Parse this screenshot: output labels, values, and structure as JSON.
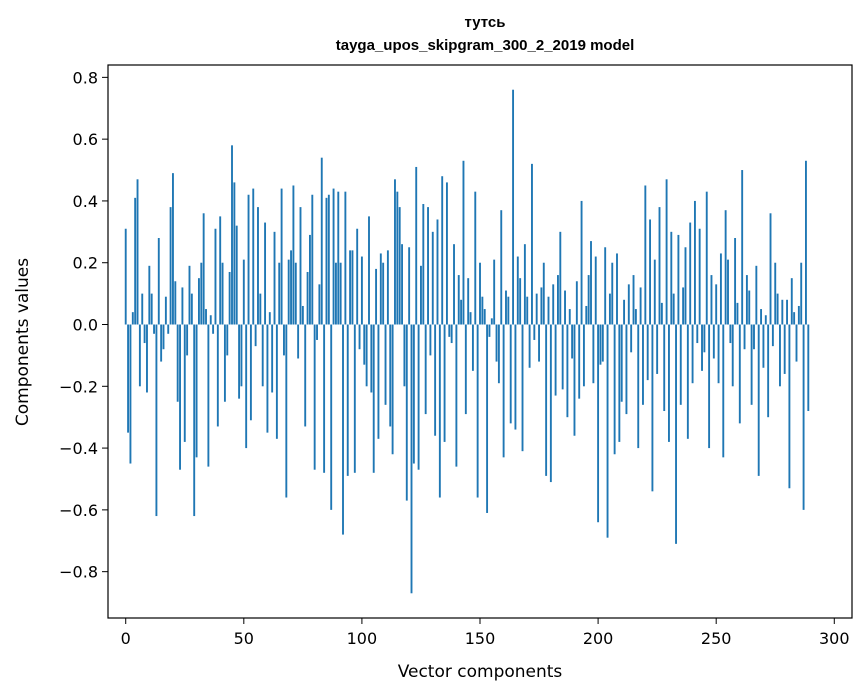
{
  "chart_data": {
    "type": "bar",
    "title_line1": "тутсь",
    "title_line2": "tayga_upos_skipgram_300_2_2019 model",
    "xlabel": "Vector components",
    "ylabel": "Components values",
    "xlim": [
      -7.5,
      307.5
    ],
    "ylim": [
      -0.95,
      0.84
    ],
    "xticks": [
      0,
      50,
      100,
      150,
      200,
      250,
      300
    ],
    "xtick_labels": [
      "0",
      "50",
      "100",
      "150",
      "200",
      "250",
      "300"
    ],
    "yticks": [
      0.8,
      0.6,
      0.4,
      0.2,
      0.0,
      -0.2,
      -0.4,
      -0.6,
      -0.8
    ],
    "ytick_labels": [
      "0.8",
      "0.6",
      "0.4",
      "0.2",
      "0.0",
      "−0.2",
      "−0.4",
      "−0.6",
      "−0.8"
    ],
    "bar_color": "#1f77b4",
    "values": [
      0.31,
      -0.35,
      -0.45,
      0.04,
      0.41,
      0.47,
      -0.2,
      0.1,
      -0.06,
      -0.22,
      0.19,
      0.1,
      -0.03,
      -0.62,
      0.28,
      -0.12,
      -0.08,
      0.09,
      -0.03,
      0.38,
      0.49,
      0.14,
      -0.25,
      -0.47,
      0.12,
      -0.38,
      -0.1,
      0.19,
      0.1,
      -0.62,
      -0.43,
      0.15,
      0.2,
      0.36,
      0.05,
      -0.46,
      0.03,
      -0.03,
      0.31,
      -0.33,
      0.35,
      0.2,
      -0.25,
      -0.1,
      0.17,
      0.58,
      0.46,
      0.32,
      -0.24,
      -0.2,
      0.21,
      -0.4,
      0.42,
      -0.31,
      0.44,
      -0.07,
      0.38,
      0.1,
      -0.2,
      0.33,
      -0.35,
      0.04,
      -0.22,
      0.3,
      -0.37,
      0.2,
      0.44,
      -0.1,
      -0.56,
      0.21,
      0.24,
      0.45,
      0.2,
      -0.11,
      0.38,
      0.06,
      -0.33,
      0.17,
      0.29,
      0.42,
      -0.47,
      -0.05,
      0.13,
      0.54,
      -0.48,
      0.41,
      0.42,
      -0.6,
      0.44,
      0.2,
      0.43,
      0.2,
      -0.68,
      0.43,
      -0.49,
      0.24,
      0.24,
      -0.48,
      0.31,
      -0.08,
      0.22,
      -0.13,
      -0.2,
      0.35,
      -0.22,
      -0.48,
      0.18,
      -0.37,
      0.23,
      0.2,
      -0.26,
      0.24,
      -0.33,
      -0.42,
      0.47,
      0.43,
      0.38,
      0.26,
      -0.2,
      -0.57,
      0.25,
      -0.87,
      -0.45,
      0.51,
      -0.47,
      0.19,
      0.39,
      -0.29,
      0.38,
      -0.1,
      0.3,
      -0.36,
      0.34,
      -0.56,
      0.48,
      -0.38,
      0.46,
      -0.04,
      -0.06,
      0.26,
      -0.46,
      0.16,
      0.08,
      0.53,
      -0.29,
      0.15,
      0.04,
      -0.15,
      0.43,
      -0.56,
      0.2,
      0.09,
      0.05,
      -0.61,
      -0.04,
      0.02,
      0.21,
      -0.12,
      -0.19,
      0.37,
      -0.43,
      0.11,
      0.09,
      -0.32,
      0.76,
      -0.34,
      0.22,
      0.15,
      -0.41,
      0.26,
      0.09,
      -0.14,
      0.52,
      -0.05,
      0.1,
      -0.12,
      0.12,
      0.2,
      -0.49,
      0.09,
      -0.51,
      0.13,
      -0.23,
      0.16,
      0.3,
      -0.21,
      0.11,
      -0.3,
      0.05,
      -0.11,
      -0.36,
      0.14,
      -0.24,
      0.4,
      -0.2,
      0.06,
      0.16,
      0.27,
      -0.19,
      0.22,
      -0.64,
      -0.13,
      -0.12,
      0.25,
      -0.69,
      0.1,
      0.2,
      -0.42,
      0.23,
      -0.38,
      -0.25,
      0.08,
      -0.29,
      0.13,
      -0.09,
      0.16,
      0.05,
      -0.4,
      0.12,
      -0.26,
      0.45,
      -0.18,
      0.34,
      -0.54,
      0.21,
      -0.16,
      0.38,
      0.07,
      -0.28,
      0.47,
      -0.38,
      0.3,
      0.1,
      -0.71,
      0.29,
      -0.26,
      0.12,
      0.25,
      -0.37,
      0.33,
      -0.19,
      0.4,
      -0.06,
      0.31,
      -0.15,
      -0.09,
      0.43,
      -0.4,
      0.16,
      -0.11,
      0.13,
      -0.19,
      0.23,
      -0.43,
      0.37,
      0.21,
      -0.06,
      -0.2,
      0.28,
      0.07,
      -0.32,
      0.5,
      -0.08,
      0.16,
      0.11,
      -0.26,
      -0.08,
      0.19,
      -0.49,
      0.05,
      -0.14,
      0.03,
      -0.3,
      0.36,
      -0.07,
      0.2,
      0.1,
      -0.2,
      0.08,
      -0.16,
      0.08,
      -0.53,
      0.15,
      0.04,
      -0.12,
      0.06,
      0.2,
      -0.6,
      0.53,
      -0.28
    ]
  }
}
